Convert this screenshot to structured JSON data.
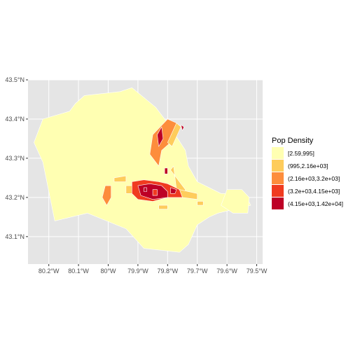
{
  "chart_data": {
    "type": "choropleth",
    "title": "",
    "xlabel": "",
    "ylabel": "",
    "xlim": [
      -80.27,
      -79.48
    ],
    "ylim": [
      43.03,
      43.5
    ],
    "x_ticks": [
      {
        "value": -80.2,
        "label": "80.2°W"
      },
      {
        "value": -80.1,
        "label": "80.1°W"
      },
      {
        "value": -80.0,
        "label": "80°W"
      },
      {
        "value": -79.9,
        "label": "79.9°W"
      },
      {
        "value": -79.8,
        "label": "79.8°W"
      },
      {
        "value": -79.7,
        "label": "79.7°W"
      },
      {
        "value": -79.6,
        "label": "79.6°W"
      },
      {
        "value": -79.5,
        "label": "79.5°W"
      }
    ],
    "y_ticks": [
      {
        "value": 43.1,
        "label": "43.1°N"
      },
      {
        "value": 43.2,
        "label": "43.2°N"
      },
      {
        "value": 43.3,
        "label": "43.3°N"
      },
      {
        "value": 43.4,
        "label": "43.4°N"
      },
      {
        "value": 43.5,
        "label": "43.5°N"
      }
    ],
    "grid": true,
    "panel_background": "#e5e5e5",
    "legend": {
      "title": "Pop Density",
      "placement": "right",
      "classes": [
        {
          "label": "[2.59,995]",
          "color": "#ffffb2"
        },
        {
          "label": "(995,2.16e+03]",
          "color": "#fecc5c"
        },
        {
          "label": "(2.16e+03,3.2e+03]",
          "color": "#fd8d3c"
        },
        {
          "label": "(3.2e+03,4.15e+03]",
          "color": "#f03b20"
        },
        {
          "label": "(4.15e+03,1.42e+04]",
          "color": "#bd0026"
        }
      ]
    },
    "regions": [
      {
        "class": 0,
        "coords": [
          [
            -80.22,
            43.4
          ],
          [
            -80.13,
            43.42
          ],
          [
            -80.11,
            43.44
          ],
          [
            -80.08,
            43.46
          ],
          [
            -79.96,
            43.47
          ],
          [
            -79.92,
            43.48
          ],
          [
            -79.84,
            43.43
          ],
          [
            -79.8,
            43.39
          ],
          [
            -79.74,
            43.32
          ],
          [
            -79.73,
            43.28
          ],
          [
            -79.7,
            43.24
          ],
          [
            -79.62,
            43.21
          ],
          [
            -79.54,
            43.21
          ],
          [
            -79.52,
            43.18
          ],
          [
            -79.63,
            43.16
          ],
          [
            -79.66,
            43.15
          ],
          [
            -79.7,
            43.13
          ],
          [
            -79.73,
            43.08
          ],
          [
            -79.76,
            43.06
          ],
          [
            -79.88,
            43.07
          ],
          [
            -79.94,
            43.12
          ],
          [
            -80.07,
            43.16
          ],
          [
            -80.18,
            43.14
          ],
          [
            -80.22,
            43.29
          ],
          [
            -80.25,
            43.34
          ]
        ]
      },
      {
        "class": 0,
        "coords": [
          [
            -79.6,
            43.22
          ],
          [
            -79.55,
            43.22
          ],
          [
            -79.525,
            43.2
          ],
          [
            -79.53,
            43.16
          ],
          [
            -79.58,
            43.16
          ],
          [
            -79.62,
            43.18
          ]
        ]
      },
      {
        "class": 2,
        "coords": [
          [
            -79.8,
            43.4
          ],
          [
            -79.77,
            43.39
          ],
          [
            -79.79,
            43.34
          ],
          [
            -79.82,
            43.32
          ],
          [
            -79.83,
            43.28
          ],
          [
            -79.86,
            43.31
          ],
          [
            -79.85,
            43.36
          ]
        ]
      },
      {
        "class": 4,
        "coords": [
          [
            -79.83,
            43.33
          ],
          [
            -79.815,
            43.35
          ],
          [
            -79.82,
            43.38
          ],
          [
            -79.835,
            43.36
          ]
        ]
      },
      {
        "class": 1,
        "coords": [
          [
            -79.77,
            43.39
          ],
          [
            -79.755,
            43.38
          ],
          [
            -79.785,
            43.33
          ],
          [
            -79.8,
            43.34
          ]
        ]
      },
      {
        "class": 4,
        "coords": [
          [
            -79.755,
            43.385
          ],
          [
            -79.745,
            43.38
          ],
          [
            -79.75,
            43.37
          ]
        ]
      },
      {
        "class": 1,
        "coords": [
          [
            -79.79,
            43.27
          ],
          [
            -79.78,
            43.28
          ],
          [
            -79.77,
            43.22
          ],
          [
            -79.74,
            43.2
          ],
          [
            -79.74,
            43.22
          ]
        ]
      },
      {
        "class": 1,
        "coords": [
          [
            -79.98,
            43.25
          ],
          [
            -79.94,
            43.255
          ],
          [
            -79.94,
            43.24
          ],
          [
            -79.98,
            43.24
          ]
        ]
      },
      {
        "class": 2,
        "coords": [
          [
            -80.01,
            43.23
          ],
          [
            -79.99,
            43.23
          ],
          [
            -79.99,
            43.2
          ],
          [
            -80.005,
            43.18
          ],
          [
            -80.02,
            43.2
          ]
        ]
      },
      {
        "class": 1,
        "coords": [
          [
            -79.94,
            43.23
          ],
          [
            -79.91,
            43.23
          ],
          [
            -79.91,
            43.21
          ],
          [
            -79.94,
            43.21
          ]
        ]
      },
      {
        "class": 3,
        "coords": [
          [
            -79.92,
            43.24
          ],
          [
            -79.88,
            43.245
          ],
          [
            -79.83,
            43.24
          ],
          [
            -79.8,
            43.235
          ],
          [
            -79.76,
            43.22
          ],
          [
            -79.75,
            43.2
          ],
          [
            -79.8,
            43.2
          ],
          [
            -79.85,
            43.19
          ],
          [
            -79.9,
            43.195
          ],
          [
            -79.92,
            43.21
          ]
        ]
      },
      {
        "class": 4,
        "coords": [
          [
            -79.9,
            43.23
          ],
          [
            -79.86,
            43.235
          ],
          [
            -79.82,
            43.23
          ],
          [
            -79.8,
            43.215
          ],
          [
            -79.8,
            43.2
          ],
          [
            -79.85,
            43.195
          ],
          [
            -79.89,
            43.205
          ]
        ]
      },
      {
        "class": 1,
        "coords": [
          [
            -79.76,
            43.22
          ],
          [
            -79.7,
            43.21
          ],
          [
            -79.7,
            43.195
          ],
          [
            -79.75,
            43.2
          ]
        ]
      },
      {
        "class": 1,
        "coords": [
          [
            -79.7,
            43.19
          ],
          [
            -79.68,
            43.19
          ],
          [
            -79.68,
            43.18
          ],
          [
            -79.7,
            43.18
          ]
        ]
      },
      {
        "class": 1,
        "coords": [
          [
            -79.83,
            43.18
          ],
          [
            -79.8,
            43.18
          ],
          [
            -79.8,
            43.17
          ],
          [
            -79.83,
            43.17
          ]
        ]
      },
      {
        "class": 4,
        "coords": [
          [
            -79.81,
            43.275
          ],
          [
            -79.8,
            43.275
          ],
          [
            -79.8,
            43.26
          ],
          [
            -79.81,
            43.26
          ]
        ]
      },
      {
        "class": 4,
        "coords": [
          [
            -79.88,
            43.225
          ],
          [
            -79.87,
            43.225
          ],
          [
            -79.87,
            43.215
          ],
          [
            -79.88,
            43.215
          ]
        ]
      },
      {
        "class": 3,
        "coords": [
          [
            -79.85,
            43.22
          ],
          [
            -79.835,
            43.22
          ],
          [
            -79.835,
            43.205
          ],
          [
            -79.85,
            43.205
          ]
        ]
      },
      {
        "class": 4,
        "coords": [
          [
            -79.79,
            43.225
          ],
          [
            -79.77,
            43.22
          ],
          [
            -79.775,
            43.21
          ],
          [
            -79.79,
            43.21
          ]
        ]
      }
    ]
  }
}
